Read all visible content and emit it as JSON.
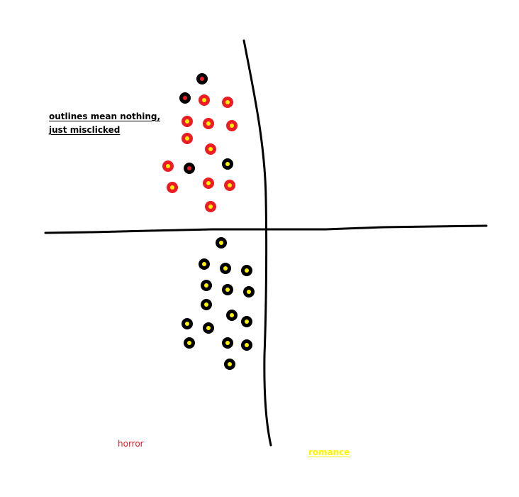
{
  "annotation": {
    "line1": "outlines mean nothing,",
    "line2": "just misclicked"
  },
  "labels": {
    "horror": "horror",
    "romance": "romance"
  },
  "colors": {
    "horror": "#ed1c24",
    "romance": "#fff200",
    "outline": "#000000",
    "axes": "#000000"
  },
  "chart_data": {
    "type": "scatter",
    "title": "",
    "xlabel": "",
    "ylabel": "",
    "grid": false,
    "legend": "none",
    "xlim": [
      -10,
      10
    ],
    "ylim": [
      -10,
      10
    ],
    "series": [
      {
        "fill": "#ed1c24",
        "outline": "#000000",
        "points": [
          [
            -3.0,
            7.1
          ],
          [
            -3.8,
            6.2
          ]
        ]
      },
      {
        "fill": "#fff200",
        "outline": "#ed1c24",
        "points": [
          [
            -2.9,
            6.1
          ],
          [
            -1.8,
            6.0
          ],
          [
            -3.7,
            5.1
          ],
          [
            -2.7,
            5.0
          ],
          [
            -1.6,
            4.9
          ],
          [
            -3.7,
            4.3
          ],
          [
            -2.6,
            3.8
          ],
          [
            -4.6,
            3.0
          ],
          [
            -2.7,
            2.2
          ],
          [
            -1.7,
            2.1
          ],
          [
            -4.4,
            2.0
          ],
          [
            -2.6,
            1.1
          ]
        ]
      },
      {
        "fill": "#ed1c24",
        "outline": "#000000",
        "points": [
          [
            -3.6,
            2.9
          ]
        ]
      },
      {
        "fill": "#fff200",
        "outline": "#000000",
        "points": [
          [
            -1.8,
            3.1
          ],
          [
            -2.1,
            -0.6
          ],
          [
            -2.9,
            -1.6
          ],
          [
            -1.9,
            -1.8
          ],
          [
            -0.9,
            -1.9
          ],
          [
            -2.8,
            -2.6
          ],
          [
            -1.8,
            -2.8
          ],
          [
            -0.8,
            -2.9
          ],
          [
            -2.8,
            -3.5
          ],
          [
            -1.6,
            -4.0
          ],
          [
            -3.7,
            -4.4
          ],
          [
            -2.7,
            -4.6
          ],
          [
            -0.9,
            -4.3
          ],
          [
            -3.6,
            -5.3
          ],
          [
            -1.8,
            -5.3
          ],
          [
            -0.9,
            -5.4
          ],
          [
            -1.7,
            -6.3
          ]
        ]
      }
    ]
  }
}
